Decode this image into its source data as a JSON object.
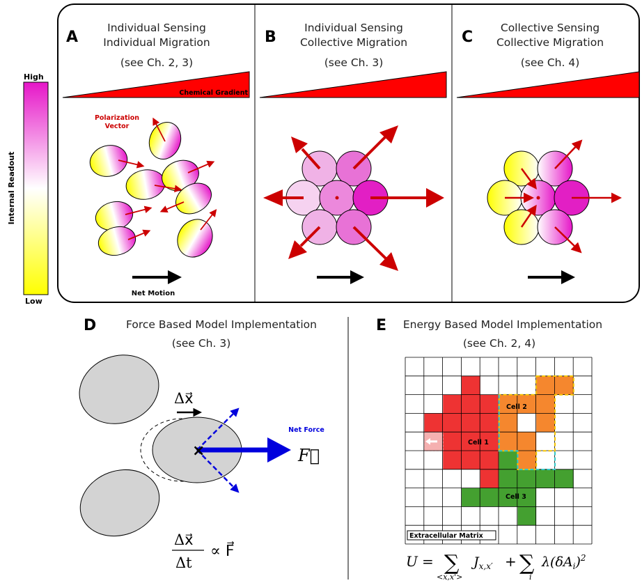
{
  "colorbar": {
    "high_label": "High",
    "low_label": "Low",
    "axis_label": "Internal Readout",
    "colors": {
      "high": "#e616c8",
      "mid": "#ffffff",
      "low": "#ffff00"
    }
  },
  "panels": {
    "A": {
      "letter": "A",
      "title_line1": "Individual Sensing",
      "title_line2": "Individual Migration",
      "ref": "(see Ch. 2, 3)",
      "gradient_label": "Chemical Gradient",
      "polarization_label_line1": "Polarization",
      "polarization_label_line2": "Vector",
      "net_motion_label": "Net Motion"
    },
    "B": {
      "letter": "B",
      "title_line1": "Individual Sensing",
      "title_line2": "Collective Migration",
      "ref": "(see Ch. 3)"
    },
    "C": {
      "letter": "C",
      "title_line1": "Collective Sensing",
      "title_line2": "Collective Migration",
      "ref": "(see Ch. 4)"
    },
    "D": {
      "letter": "D",
      "title": "Force Based Model Implementation",
      "ref": "(see Ch. 3)",
      "net_force_label": "Net Force",
      "delta_x_label": "Δx⃗",
      "force_label": "F⃗",
      "eq_numerator": "Δx⃗",
      "eq_denominator": "Δt",
      "eq_rhs": "∝ F⃗"
    },
    "E": {
      "letter": "E",
      "title": "Energy Based Model Implementation",
      "ref": "(see Ch. 2, 4)",
      "cell1_label": "Cell 1",
      "cell2_label": "Cell 2",
      "cell3_label": "Cell 3",
      "ecm_label": "Extracellular Matrix",
      "equation": "U = Σ J_{x,x'} + Σ λ(δA_i)²",
      "eq_sub1": "<x,x'>",
      "eq_sub2": "i"
    }
  },
  "colors": {
    "arrow_red": "#cc0000",
    "gradient_red": "#ff0000",
    "force_blue": "#0000dd",
    "cell_grey": "#d3d3d3",
    "cpm_red": "#ee3333",
    "cpm_orange": "#f5872e",
    "cpm_green": "#44a030"
  }
}
